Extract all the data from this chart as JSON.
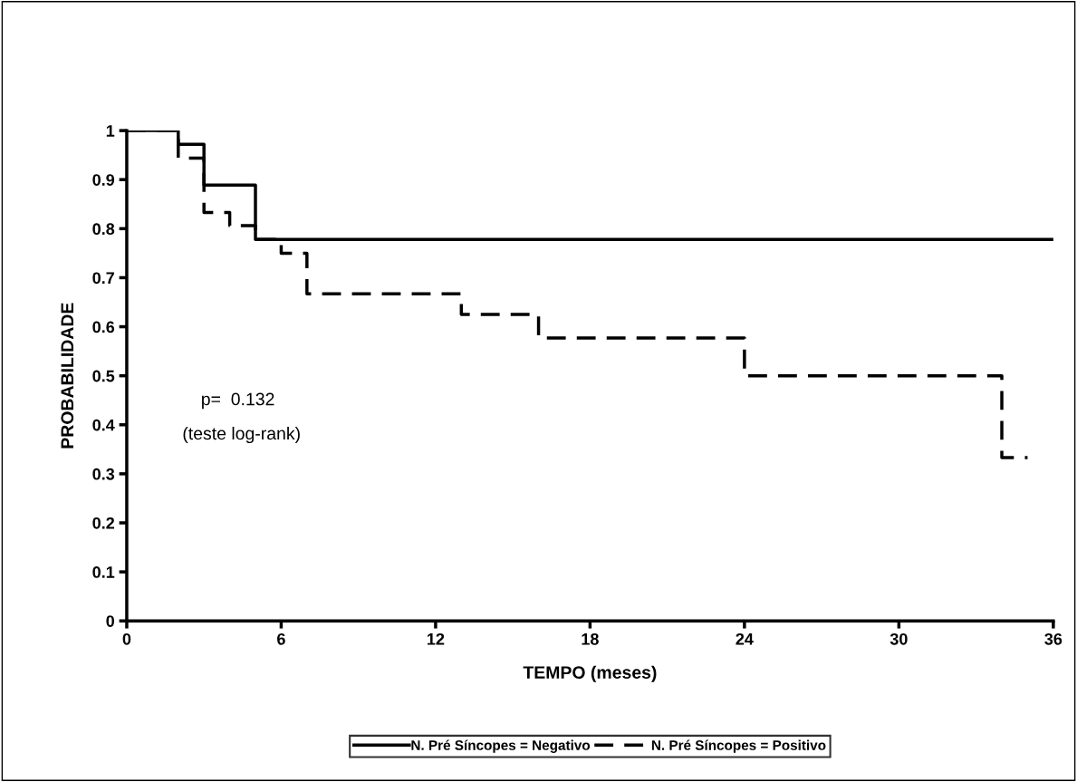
{
  "chart_data": {
    "type": "step",
    "xlabel": "TEMPO (meses)",
    "ylabel": "PROBABILIDADE",
    "series": [
      {
        "name": "N. Pré Síncopes = Negativo",
        "color": "#000000",
        "line_style": "solid",
        "x": [
          0,
          2,
          3,
          5,
          36
        ],
        "values": [
          1,
          0.972,
          0.889,
          0.778,
          0.778
        ]
      },
      {
        "name": "N. Pré Síncopes = Positivo",
        "color": "#000000",
        "line_style": "dashed",
        "x": [
          0,
          2,
          3,
          4,
          5,
          6,
          7,
          13,
          16,
          24,
          34,
          35
        ],
        "values": [
          1,
          0.944,
          0.833,
          0.806,
          0.778,
          0.75,
          0.667,
          0.625,
          0.577,
          0.5,
          0.333,
          0.333
        ]
      }
    ],
    "xlim": [
      0,
      36
    ],
    "xticks": [
      0,
      6,
      12,
      18,
      24,
      30,
      36
    ],
    "ylim": [
      0,
      1
    ],
    "yticks": [
      0,
      0.1,
      0.2,
      0.3,
      0.4,
      0.5,
      0.6,
      0.7,
      0.8,
      0.9,
      1
    ],
    "annotations": [
      "p=  0.132",
      "(teste log-rank)"
    ],
    "legend": "bottom",
    "grid": false
  }
}
